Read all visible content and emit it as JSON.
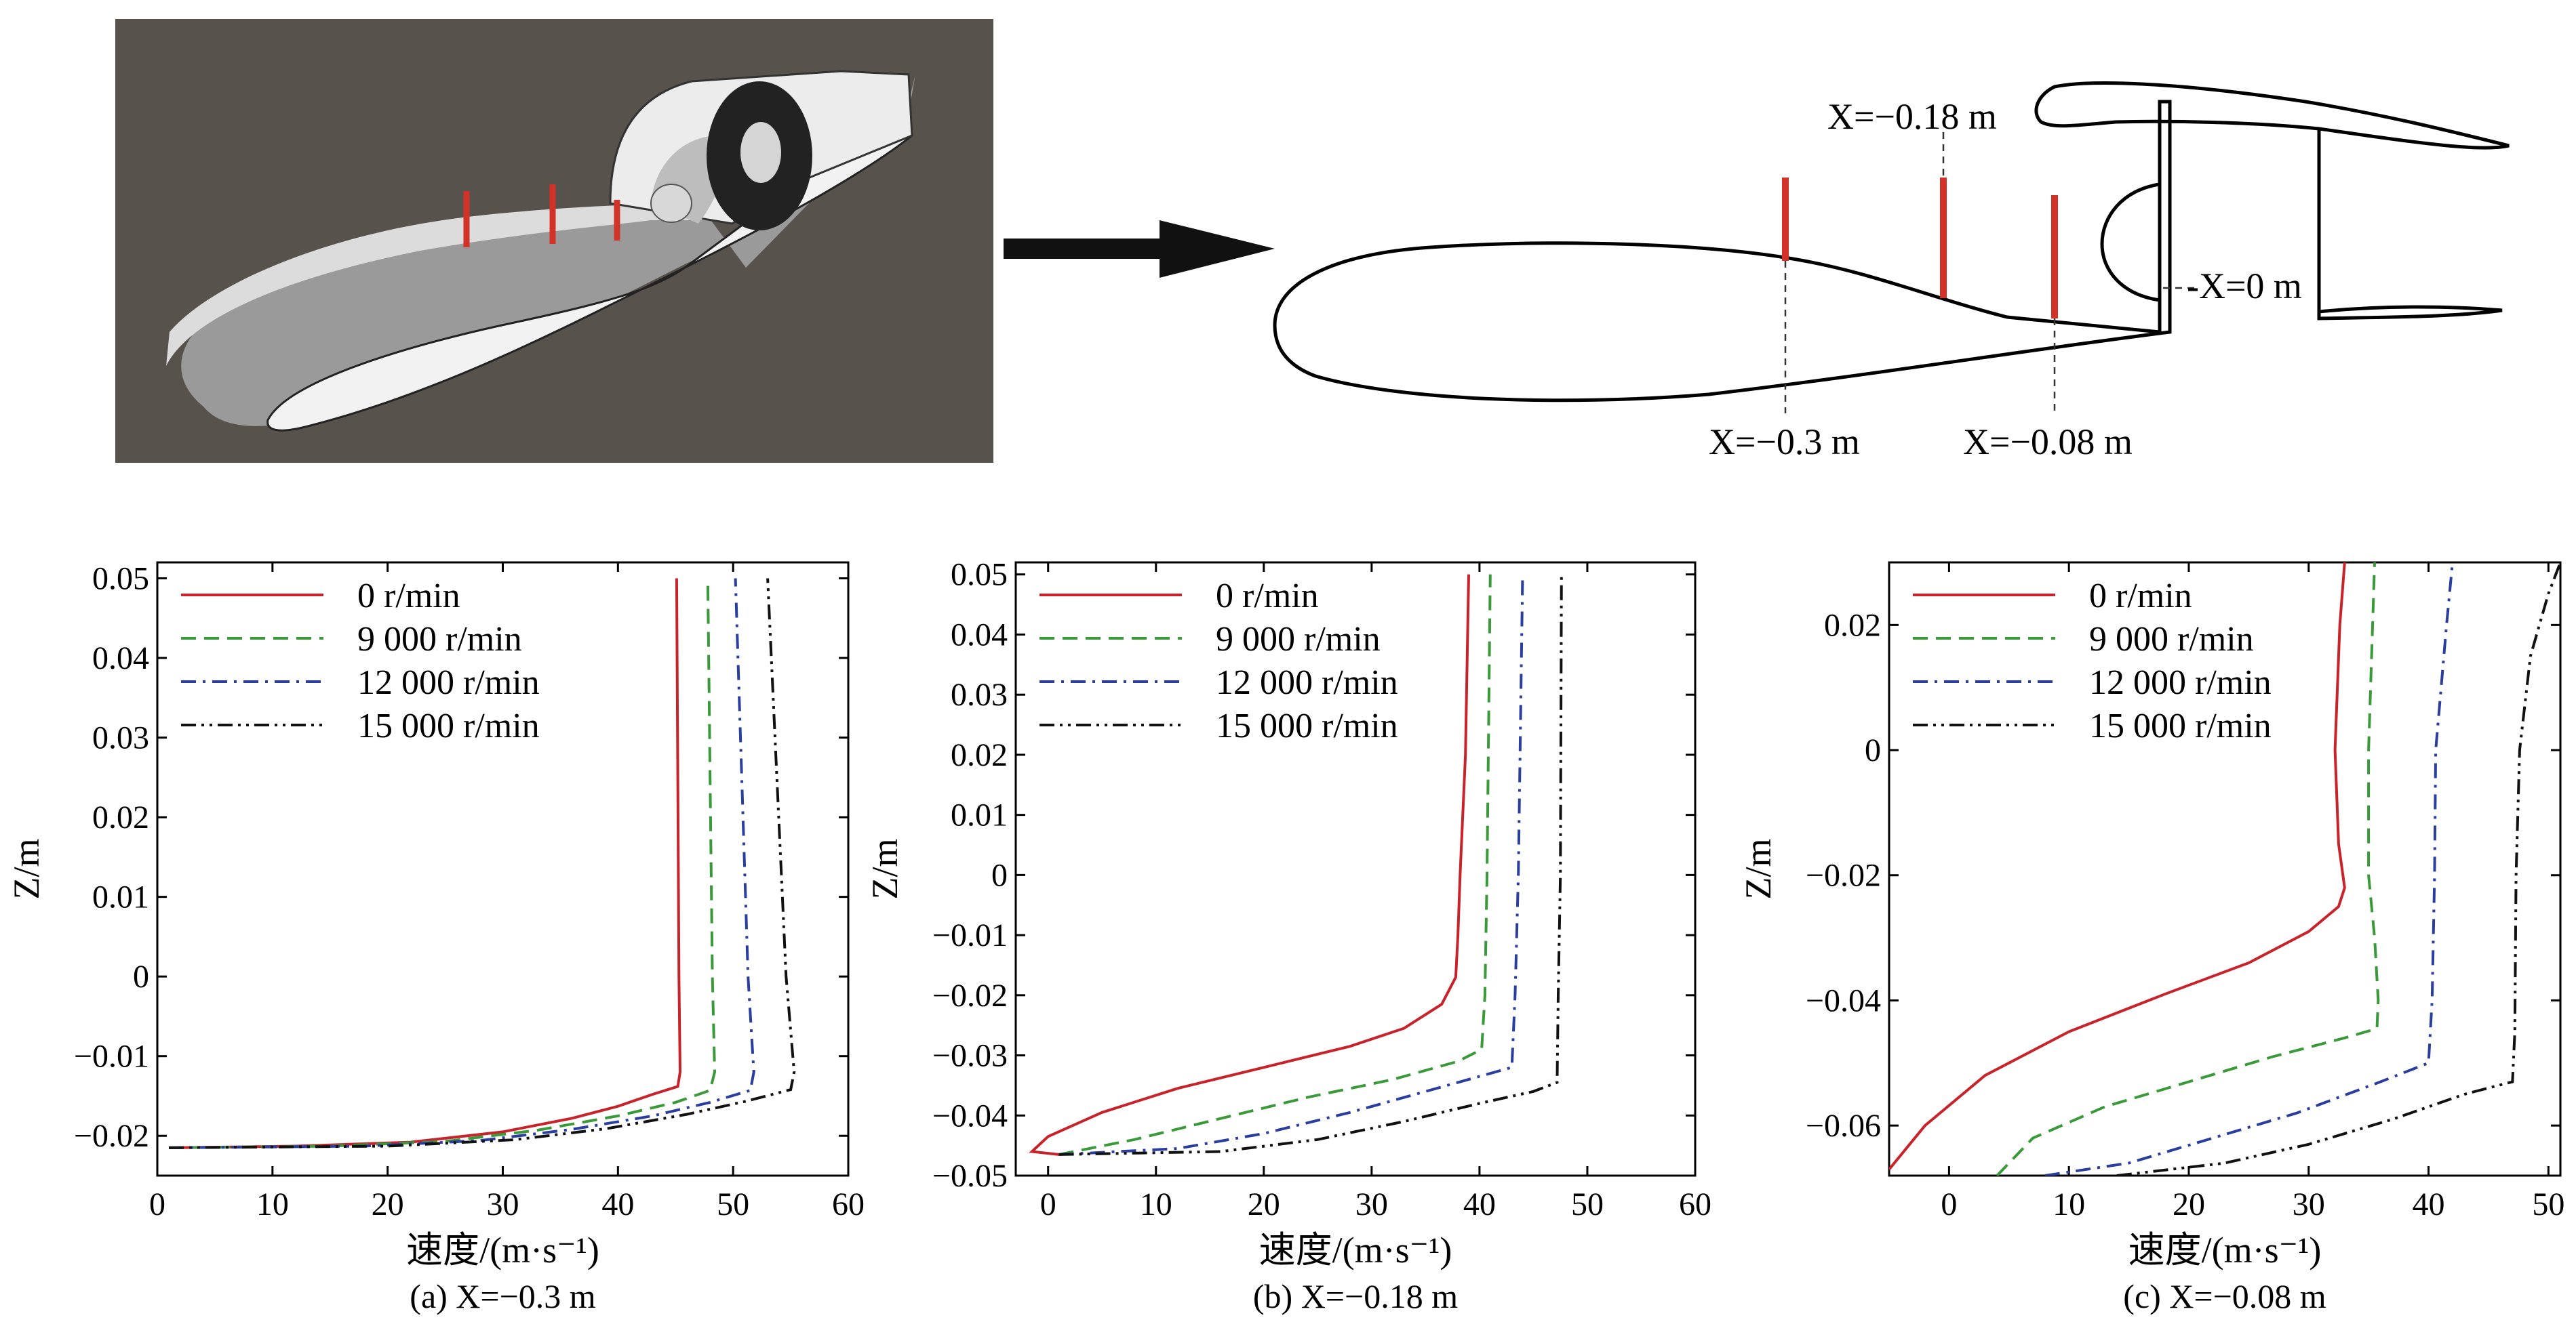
{
  "top": {
    "annotations": {
      "x_018": "X=−0.18 m",
      "x_0": "-X=0 m",
      "x_03": "X=−0.3 m",
      "x_008": "X=−0.08 m"
    },
    "colors": {
      "render_bg": "#58524d",
      "probe_line": "#d23228",
      "arrow": "#111111"
    }
  },
  "chart_data": [
    {
      "type": "line",
      "caption": "(a) X=−0.3 m",
      "xlabel": "速度/(m·s⁻¹)",
      "ylabel": "Z/m",
      "xlim": [
        0,
        60
      ],
      "ylim": [
        -0.025,
        0.052
      ],
      "xticks": [
        "0",
        "10",
        "20",
        "30",
        "40",
        "50",
        "60"
      ],
      "yticks": [
        "−0.02",
        "−0.01",
        "0",
        "0.01",
        "0.02",
        "0.03",
        "0.04",
        "0.05"
      ],
      "legend": "top-left",
      "series": [
        {
          "name": "0 r/min",
          "color": "#c8232b",
          "dash": "solid",
          "points": [
            [
              1,
              -0.0215
            ],
            [
              12,
              -0.0213
            ],
            [
              22,
              -0.0208
            ],
            [
              30,
              -0.0195
            ],
            [
              36,
              -0.0178
            ],
            [
              40,
              -0.0163
            ],
            [
              43,
              -0.0148
            ],
            [
              45.2,
              -0.0138
            ],
            [
              45.4,
              -0.012
            ],
            [
              45.3,
              0
            ],
            [
              45.1,
              0.05
            ]
          ]
        },
        {
          "name": "9 000 r/min",
          "color": "#3a9a3a",
          "dash": "dashed",
          "points": [
            [
              1,
              -0.0215
            ],
            [
              15,
              -0.0213
            ],
            [
              25,
              -0.0207
            ],
            [
              33,
              -0.0193
            ],
            [
              40,
              -0.0175
            ],
            [
              45,
              -0.0158
            ],
            [
              48,
              -0.0143
            ],
            [
              48.4,
              -0.012
            ],
            [
              48.2,
              0
            ],
            [
              47.8,
              0.05
            ]
          ]
        },
        {
          "name": "12 000 r/min",
          "color": "#2a3ea0",
          "dash": "dashdot",
          "points": [
            [
              1,
              -0.0215
            ],
            [
              18,
              -0.0213
            ],
            [
              28,
              -0.0206
            ],
            [
              36,
              -0.0192
            ],
            [
              43,
              -0.0175
            ],
            [
              48,
              -0.0158
            ],
            [
              51.5,
              -0.0143
            ],
            [
              51.8,
              -0.012
            ],
            [
              51.3,
              0
            ],
            [
              50.2,
              0.05
            ]
          ]
        },
        {
          "name": "15 000 r/min",
          "color": "#111111",
          "dash": "dashdotdot",
          "points": [
            [
              1,
              -0.0215
            ],
            [
              20,
              -0.0213
            ],
            [
              31,
              -0.0205
            ],
            [
              39,
              -0.0191
            ],
            [
              46,
              -0.0173
            ],
            [
              51,
              -0.0157
            ],
            [
              55,
              -0.0142
            ],
            [
              55.3,
              -0.012
            ],
            [
              54.6,
              0
            ],
            [
              53,
              0.05
            ]
          ]
        }
      ]
    },
    {
      "type": "line",
      "caption": "(b) X=−0.18 m",
      "xlabel": "速度/(m·s⁻¹)",
      "ylabel": "Z/m",
      "xlim": [
        -3,
        60
      ],
      "ylim": [
        -0.05,
        0.052
      ],
      "xticks": [
        "0",
        "10",
        "20",
        "30",
        "40",
        "50",
        "60"
      ],
      "yticks": [
        "−0.05",
        "−0.04",
        "−0.03",
        "−0.02",
        "−0.01",
        "0",
        "0.01",
        "0.02",
        "0.03",
        "0.04",
        "0.05"
      ],
      "legend": "top-left",
      "series": [
        {
          "name": "0 r/min",
          "color": "#c8232b",
          "dash": "solid",
          "points": [
            [
              1,
              -0.0465
            ],
            [
              -1.5,
              -0.046
            ],
            [
              0,
              -0.0435
            ],
            [
              5,
              -0.0395
            ],
            [
              12,
              -0.0355
            ],
            [
              20,
              -0.032
            ],
            [
              28,
              -0.0285
            ],
            [
              33,
              -0.0255
            ],
            [
              36.5,
              -0.0215
            ],
            [
              37.8,
              -0.017
            ],
            [
              38,
              -0.01
            ],
            [
              38.2,
              0
            ],
            [
              38.7,
              0.02
            ],
            [
              39,
              0.05
            ]
          ]
        },
        {
          "name": "9 000 r/min",
          "color": "#3a9a3a",
          "dash": "dashed",
          "points": [
            [
              1,
              -0.0465
            ],
            [
              8,
              -0.044
            ],
            [
              16,
              -0.0405
            ],
            [
              24,
              -0.037
            ],
            [
              32,
              -0.034
            ],
            [
              38,
              -0.031
            ],
            [
              40.2,
              -0.029
            ],
            [
              40.5,
              -0.02
            ],
            [
              40.7,
              0
            ],
            [
              41,
              0.05
            ]
          ]
        },
        {
          "name": "12 000 r/min",
          "color": "#2a3ea0",
          "dash": "dashdot",
          "points": [
            [
              1,
              -0.0465
            ],
            [
              12,
              -0.0455
            ],
            [
              20,
              -0.043
            ],
            [
              28,
              -0.0395
            ],
            [
              35,
              -0.036
            ],
            [
              40,
              -0.0335
            ],
            [
              43,
              -0.032
            ],
            [
              43.3,
              -0.02
            ],
            [
              43.6,
              0
            ],
            [
              44,
              0.05
            ]
          ]
        },
        {
          "name": "15 000 r/min",
          "color": "#111111",
          "dash": "dashdotdot",
          "points": [
            [
              1,
              -0.0465
            ],
            [
              16,
              -0.046
            ],
            [
              25,
              -0.044
            ],
            [
              33,
              -0.041
            ],
            [
              40,
              -0.038
            ],
            [
              45,
              -0.036
            ],
            [
              47.2,
              -0.0345
            ],
            [
              47.3,
              -0.02
            ],
            [
              47.5,
              0
            ],
            [
              47.6,
              0.05
            ]
          ]
        }
      ]
    },
    {
      "type": "line",
      "caption": "(c) X=−0.08 m",
      "xlabel": "速度/(m·s⁻¹)",
      "ylabel": "Z/m",
      "xlim": [
        -5,
        51
      ],
      "ylim": [
        -0.068,
        0.03
      ],
      "xticks": [
        "0",
        "10",
        "20",
        "30",
        "40",
        "50"
      ],
      "yticks": [
        "−0.06",
        "−0.04",
        "−0.02",
        "0",
        "0.02"
      ],
      "legend": "top-left",
      "series": [
        {
          "name": "0 r/min",
          "color": "#c8232b",
          "dash": "solid",
          "points": [
            [
              -5,
              -0.067
            ],
            [
              -2,
              -0.06
            ],
            [
              3,
              -0.052
            ],
            [
              10,
              -0.045
            ],
            [
              18,
              -0.039
            ],
            [
              25,
              -0.034
            ],
            [
              30,
              -0.029
            ],
            [
              32.5,
              -0.025
            ],
            [
              33,
              -0.022
            ],
            [
              32.5,
              -0.015
            ],
            [
              32.2,
              0
            ],
            [
              32.6,
              0.02
            ],
            [
              33,
              0.03
            ]
          ]
        },
        {
          "name": "9 000 r/min",
          "color": "#3a9a3a",
          "dash": "dashed",
          "points": [
            [
              4,
              -0.068
            ],
            [
              7,
              -0.062
            ],
            [
              13,
              -0.057
            ],
            [
              20,
              -0.053
            ],
            [
              27,
              -0.049
            ],
            [
              33,
              -0.046
            ],
            [
              35.7,
              -0.0445
            ],
            [
              35.8,
              -0.04
            ],
            [
              35.5,
              -0.03
            ],
            [
              35,
              -0.02
            ],
            [
              35,
              0
            ],
            [
              35.5,
              0.03
            ]
          ]
        },
        {
          "name": "12 000 r/min",
          "color": "#2a3ea0",
          "dash": "dashdot",
          "points": [
            [
              8,
              -0.068
            ],
            [
              15,
              -0.066
            ],
            [
              22,
              -0.062
            ],
            [
              29,
              -0.058
            ],
            [
              36,
              -0.053
            ],
            [
              40,
              -0.05
            ],
            [
              40.3,
              -0.04
            ],
            [
              40.5,
              -0.02
            ],
            [
              40.6,
              0
            ],
            [
              41.5,
              0.02
            ],
            [
              42,
              0.03
            ]
          ]
        },
        {
          "name": "15 000 r/min",
          "color": "#111111",
          "dash": "dashdotdot",
          "points": [
            [
              14,
              -0.068
            ],
            [
              23,
              -0.066
            ],
            [
              30,
              -0.063
            ],
            [
              37,
              -0.059
            ],
            [
              43,
              -0.055
            ],
            [
              47,
              -0.053
            ],
            [
              47.2,
              -0.045
            ],
            [
              47.3,
              -0.02
            ],
            [
              47.6,
              0
            ],
            [
              48.5,
              0.015
            ],
            [
              50,
              0.025
            ],
            [
              51,
              0.03
            ]
          ]
        }
      ]
    }
  ]
}
